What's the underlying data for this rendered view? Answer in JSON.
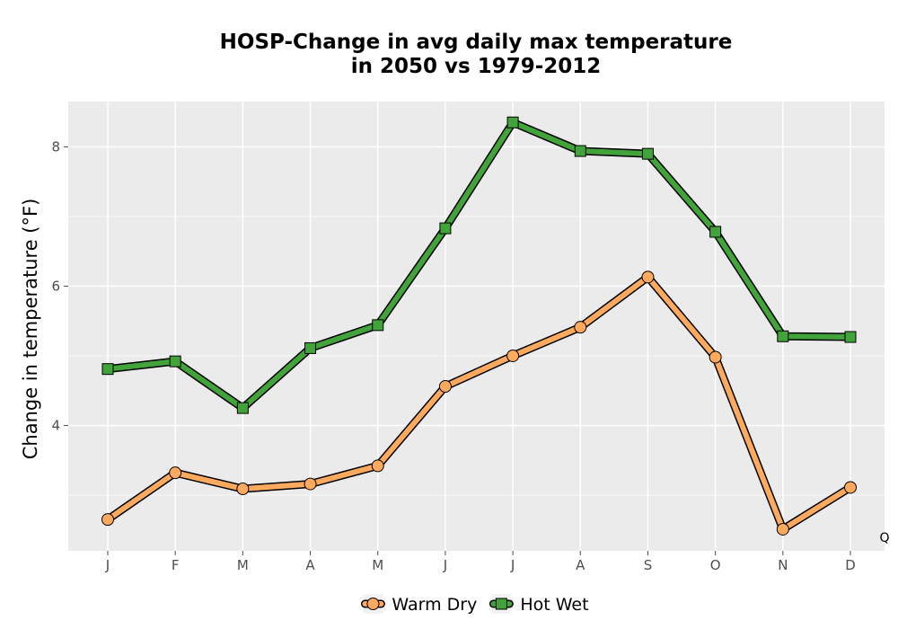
{
  "chart_data": {
    "type": "line",
    "title": "HOSP-Change in avg daily max temperature",
    "subtitle": "in 2050 vs 1979-2012",
    "xlabel": "",
    "ylabel": "Change in temperature (°F)",
    "categories": [
      "J",
      "F",
      "M",
      "A",
      "M",
      "J",
      "J",
      "A",
      "S",
      "O",
      "N",
      "D"
    ],
    "ylim": [
      2.2,
      8.65
    ],
    "yticks": [
      4,
      6,
      8
    ],
    "grid": true,
    "legend_position": "bottom",
    "annotation": "Q",
    "series": [
      {
        "name": "Warm Dry",
        "color": "#fdaa5e",
        "marker": "circle",
        "values": [
          2.65,
          3.32,
          3.09,
          3.16,
          3.42,
          4.56,
          5.0,
          5.41,
          6.13,
          4.98,
          2.51,
          3.11
        ]
      },
      {
        "name": "Hot Wet",
        "color": "#42a33a",
        "marker": "square",
        "values": [
          4.81,
          4.92,
          4.25,
          5.11,
          5.44,
          6.83,
          8.35,
          7.94,
          7.9,
          6.78,
          5.28,
          5.27
        ]
      }
    ]
  }
}
